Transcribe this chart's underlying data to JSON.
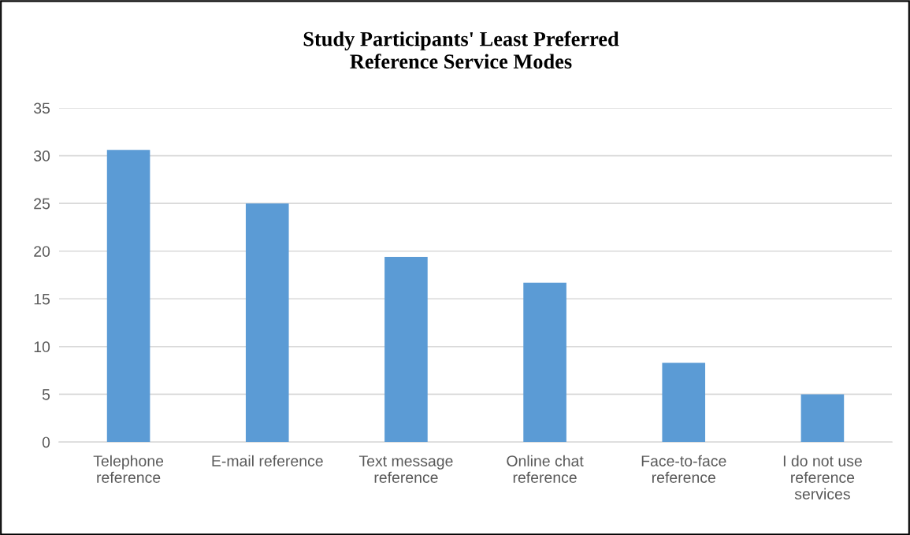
{
  "chart_data": {
    "type": "bar",
    "title": "Study Participants' Least Preferred\nReference Service Modes",
    "categories": [
      "Telephone\nreference",
      "E-mail reference",
      "Text message\nreference",
      "Online chat\nreference",
      "Face-to-face\nreference",
      "I do not use\nreference\nservices"
    ],
    "values": [
      30.6,
      25.0,
      19.4,
      16.7,
      8.3,
      5.0
    ],
    "color": "#5b9bd5",
    "ylim": [
      0,
      35
    ],
    "yticks": [
      0,
      5,
      10,
      15,
      20,
      25,
      30,
      35
    ],
    "grid": "y",
    "legend": false
  }
}
